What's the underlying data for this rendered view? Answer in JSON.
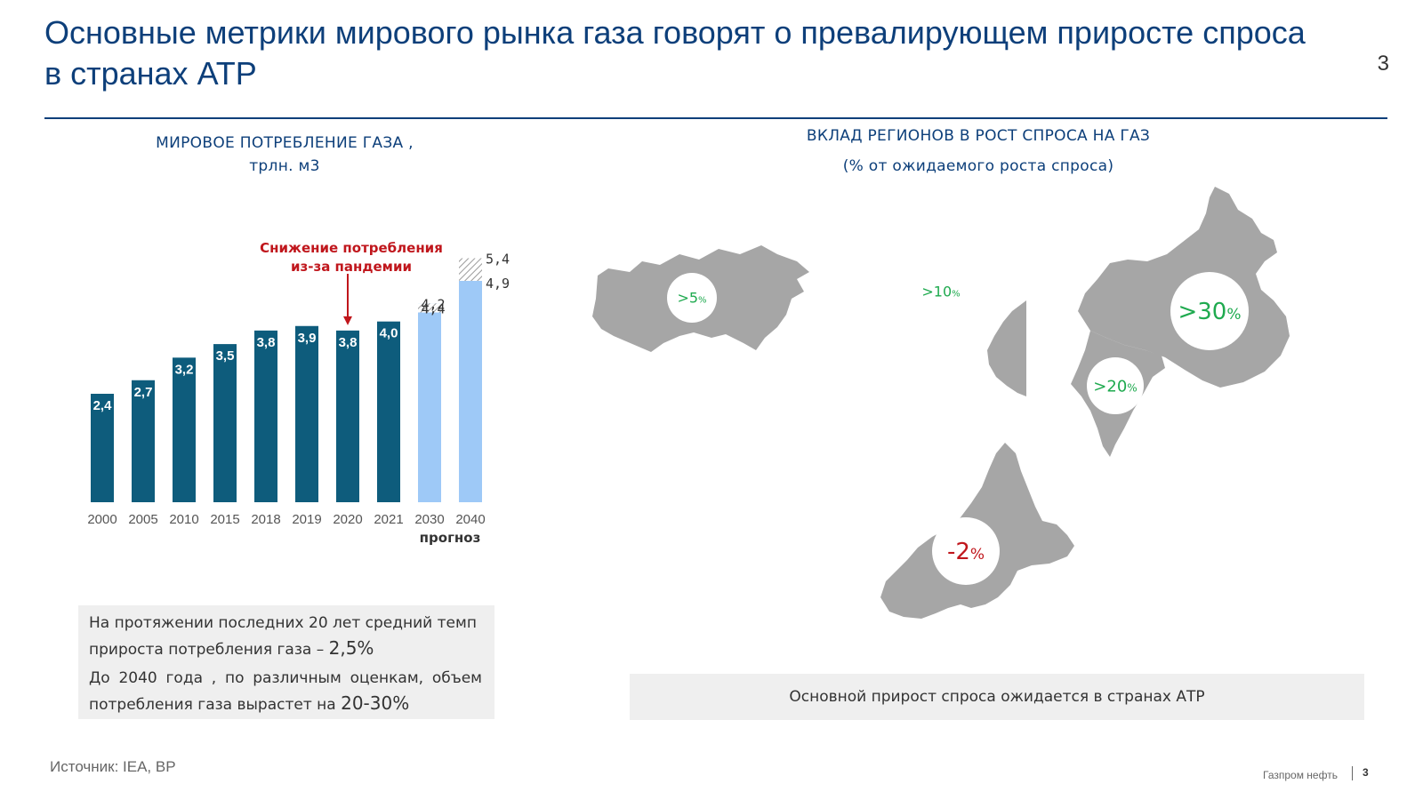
{
  "title": "Основные метрики мирового рынка газа говорят о превалирующем приросте спроса в странах АТР",
  "page_number": "3",
  "left_chart_title": "МИРОВОЕ ПОТРЕБЛЕНИЕ ГАЗА ,",
  "left_chart_unit": "трлн. м3",
  "right_title": "ВКЛАД РЕГИОНОВ В РОСТ СПРОСА НА  ГАЗ",
  "right_subtitle": "(% от ожидаемого роста спроса)",
  "chart_data": {
    "type": "bar",
    "title": "МИРОВОЕ ПОТРЕБЛЕНИЕ ГАЗА , трлн. м3",
    "categories": [
      "2000",
      "2005",
      "2010",
      "2015",
      "2018",
      "2019",
      "2020",
      "2021",
      "2030",
      "2040"
    ],
    "values": [
      2.4,
      2.7,
      3.2,
      3.5,
      3.8,
      3.9,
      3.8,
      4.0,
      4.4,
      4.9
    ],
    "labels": [
      "2,4",
      "2,7",
      "3,2",
      "3,5",
      "3,8",
      "3,9",
      "3,8",
      "4,0",
      "4,4",
      "4,9"
    ],
    "forecast_upper": [
      null,
      null,
      null,
      null,
      null,
      null,
      null,
      null,
      4.2,
      5.4
    ],
    "forecast_upper_labels": [
      null,
      null,
      null,
      null,
      null,
      null,
      null,
      null,
      "4,2",
      "5,4"
    ],
    "forecast_from_index": 8,
    "forecast_label": "прогноз",
    "annotation": "Снижение потребления из-за пандемии",
    "annotation_lines": [
      "Снижение потребления",
      "из-за пандемии"
    ],
    "annotation_category": "2020",
    "ylim": [
      0,
      6
    ],
    "colors": {
      "actual": "#0e5c7c",
      "forecast": "#9ec9f7",
      "annotation": "#c0161c",
      "hatch": "#999999"
    }
  },
  "info": {
    "line1_text": "На протяжении последних 20 лет средний темп прироста потребления газа – ",
    "line1_value": "2,5%",
    "line2_text": "До 2040 года , по различным оценкам, объем потребления газа вырастет на ",
    "line2_value": "20-30%"
  },
  "regions": [
    {
      "name": "russia",
      "value": ">5%",
      "num": ">5",
      "unit": "%",
      "color": "#1faa4f"
    },
    {
      "name": "africa",
      "value": ">10%",
      "num": ">10",
      "unit": "%",
      "color": "#1faa4f"
    },
    {
      "name": "china",
      "value": ">30%",
      "num": ">30",
      "unit": "%",
      "color": "#1faa4f"
    },
    {
      "name": "india",
      "value": ">20%",
      "num": ">20",
      "unit": "%",
      "color": "#1faa4f"
    },
    {
      "name": "europe",
      "value": "-2%",
      "num": "-2",
      "unit": "%",
      "color": "#c0161c"
    }
  ],
  "bottom_note": "Основной прирост спроса ожидается в странах АТР",
  "source": "Источник: IEA, BP",
  "footer_brand": "Газпром нефть",
  "footer_page": "3"
}
